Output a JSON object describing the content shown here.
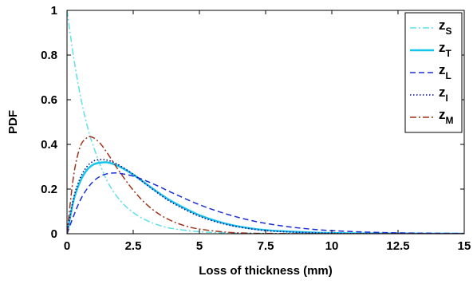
{
  "chart_data": {
    "type": "line",
    "title": "",
    "xlabel": "Loss of thickness (mm)",
    "ylabel": "PDF",
    "xlim": [
      0,
      15
    ],
    "ylim": [
      0,
      1
    ],
    "xticks": [
      0,
      2.5,
      5,
      7.5,
      10,
      12.5,
      15
    ],
    "xtick_labels": [
      "0",
      "2.5",
      "5",
      "7.5",
      "10",
      "12.5",
      "15"
    ],
    "yticks": [
      0,
      0.2,
      0.4,
      0.6,
      0.8,
      1
    ],
    "ytick_labels": [
      "0",
      "0.2",
      "0.4",
      "0.6",
      "0.8",
      "1"
    ],
    "grid": false,
    "legend_position": "top-right",
    "series": [
      {
        "name": "z_S",
        "label_main": "z",
        "label_sub": "S",
        "color": "#5fe0e8",
        "style": "dashdot",
        "x": [
          0,
          0.25,
          0.5,
          0.75,
          1,
          1.5,
          2,
          2.5,
          3,
          3.5,
          4,
          5,
          6,
          7,
          8,
          10,
          15
        ],
        "y": [
          1.0,
          0.79,
          0.62,
          0.49,
          0.39,
          0.24,
          0.15,
          0.095,
          0.06,
          0.037,
          0.023,
          0.009,
          0.004,
          0.002,
          0.001,
          0.0,
          0.0
        ]
      },
      {
        "name": "z_T",
        "label_main": "z",
        "label_sub": "T",
        "color": "#16c4ec",
        "style": "solid",
        "x": [
          0,
          0.25,
          0.5,
          0.75,
          1,
          1.25,
          1.5,
          1.75,
          2,
          2.5,
          3,
          3.5,
          4,
          5,
          6,
          7,
          8,
          10,
          12,
          15
        ],
        "y": [
          0.0,
          0.15,
          0.235,
          0.285,
          0.31,
          0.318,
          0.32,
          0.312,
          0.3,
          0.265,
          0.222,
          0.18,
          0.142,
          0.083,
          0.045,
          0.023,
          0.012,
          0.003,
          0.001,
          0.0
        ]
      },
      {
        "name": "z_L",
        "label_main": "z",
        "label_sub": "L",
        "color": "#1a2ed6",
        "style": "dashed",
        "x": [
          0,
          0.25,
          0.5,
          0.75,
          1,
          1.25,
          1.5,
          1.75,
          2,
          2.5,
          3,
          3.5,
          4,
          5,
          6,
          7,
          8,
          9,
          10,
          12,
          15
        ],
        "y": [
          0.0,
          0.08,
          0.15,
          0.2,
          0.235,
          0.257,
          0.268,
          0.272,
          0.27,
          0.258,
          0.236,
          0.21,
          0.182,
          0.13,
          0.089,
          0.058,
          0.037,
          0.023,
          0.014,
          0.005,
          0.001
        ]
      },
      {
        "name": "z_I",
        "label_main": "z",
        "label_sub": "I",
        "color": "#0a0a8a",
        "style": "dotted",
        "x": [
          0,
          0.25,
          0.5,
          0.75,
          1,
          1.25,
          1.5,
          1.75,
          2,
          2.5,
          3,
          3.5,
          4,
          5,
          6,
          7,
          8,
          10,
          12,
          15
        ],
        "y": [
          0.0,
          0.16,
          0.25,
          0.3,
          0.325,
          0.332,
          0.33,
          0.32,
          0.305,
          0.266,
          0.22,
          0.176,
          0.137,
          0.078,
          0.042,
          0.021,
          0.01,
          0.002,
          0.0,
          0.0
        ]
      },
      {
        "name": "z_M",
        "label_main": "z",
        "label_sub": "M",
        "color": "#a0341c",
        "style": "dashdot",
        "x": [
          0,
          0.25,
          0.5,
          0.75,
          0.85,
          1,
          1.25,
          1.5,
          1.75,
          2,
          2.5,
          3,
          3.5,
          4,
          4.5,
          5,
          6,
          7,
          8,
          10,
          15
        ],
        "y": [
          0.0,
          0.26,
          0.39,
          0.43,
          0.435,
          0.43,
          0.405,
          0.365,
          0.32,
          0.275,
          0.195,
          0.132,
          0.086,
          0.055,
          0.034,
          0.021,
          0.007,
          0.002,
          0.001,
          0.0,
          0.0
        ]
      }
    ]
  }
}
